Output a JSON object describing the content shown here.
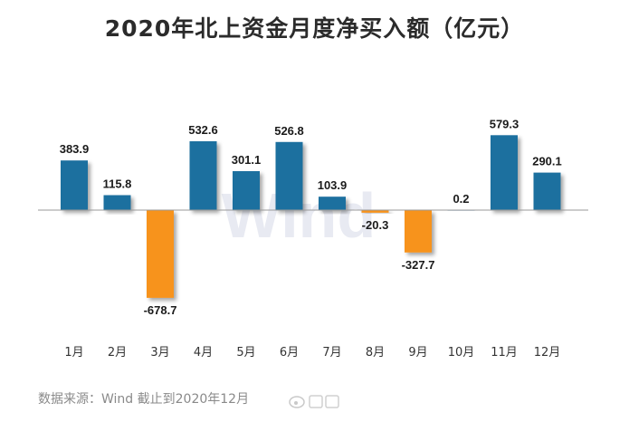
{
  "chart_data": {
    "type": "bar",
    "title": "2020年北上资金月度净买入额（亿元）",
    "categories": [
      "1月",
      "2月",
      "3月",
      "4月",
      "5月",
      "6月",
      "7月",
      "8月",
      "9月",
      "10月",
      "11月",
      "12月"
    ],
    "values": [
      383.9,
      115.8,
      -678.7,
      532.6,
      301.1,
      526.8,
      103.9,
      -20.3,
      -327.7,
      0.2,
      579.3,
      290.1
    ],
    "value_labels": [
      "383.9",
      "115.8",
      "-678.7",
      "532.6",
      "301.1",
      "526.8",
      "103.9",
      "-20.3",
      "-327.7",
      "0.2",
      "579.3",
      "290.1"
    ],
    "xlabel": "",
    "ylabel": "",
    "ylim": [
      -700,
      700
    ],
    "grid": false,
    "legend": "none",
    "colors": {
      "positive": "#1f6f9f",
      "negative": "#f7931e",
      "axis": "#9a9a9a"
    }
  },
  "footer": {
    "source": "数据来源：Wind    截止到2020年12月"
  },
  "watermark": {
    "text": "Wind"
  }
}
